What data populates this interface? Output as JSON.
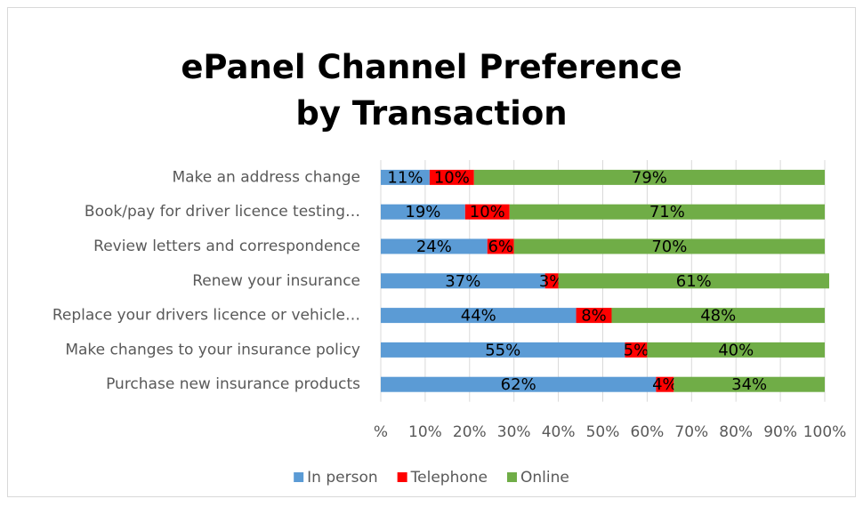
{
  "chart_data": {
    "type": "stacked-bar-horizontal",
    "title": "ePanel Channel Preference by Transaction",
    "categories": [
      "Make an address change",
      "Book/pay for driver licence testing…",
      "Review letters and correspondence",
      "Renew your insurance",
      "Replace your drivers licence or vehicle…",
      "Make changes to your insurance policy",
      "Purchase new insurance products"
    ],
    "series": [
      {
        "name": "In person",
        "color": "#5b9bd5",
        "values": [
          11,
          19,
          24,
          37,
          44,
          55,
          62
        ],
        "value_labels": [
          "11%",
          "19%",
          "24%",
          "37%",
          "44%",
          "55%",
          "62%"
        ]
      },
      {
        "name": "Telephone",
        "color": "#ff0000",
        "values": [
          10,
          10,
          6,
          3,
          8,
          5,
          4
        ],
        "value_labels": [
          "10%",
          "10%",
          "6%",
          "3%",
          "8%",
          "5%",
          "4%"
        ]
      },
      {
        "name": "Online",
        "color": "#70ad47",
        "values": [
          79,
          71,
          70,
          61,
          48,
          40,
          34
        ],
        "value_labels": [
          "79%",
          "71%",
          "70%",
          "61%",
          "48%",
          "40%",
          "34%"
        ]
      }
    ],
    "xlim": [
      0,
      100
    ],
    "xticks": [
      {
        "value": 0,
        "label": "%"
      },
      {
        "value": 10,
        "label": "10%"
      },
      {
        "value": 20,
        "label": "20%"
      },
      {
        "value": 30,
        "label": "30%"
      },
      {
        "value": 40,
        "label": "40%"
      },
      {
        "value": 50,
        "label": "50%"
      },
      {
        "value": 60,
        "label": "60%"
      },
      {
        "value": 70,
        "label": "70%"
      },
      {
        "value": 80,
        "label": "80%"
      },
      {
        "value": 90,
        "label": "90%"
      },
      {
        "value": 100,
        "label": "100%"
      }
    ],
    "grid": true,
    "legend": "bottom"
  }
}
